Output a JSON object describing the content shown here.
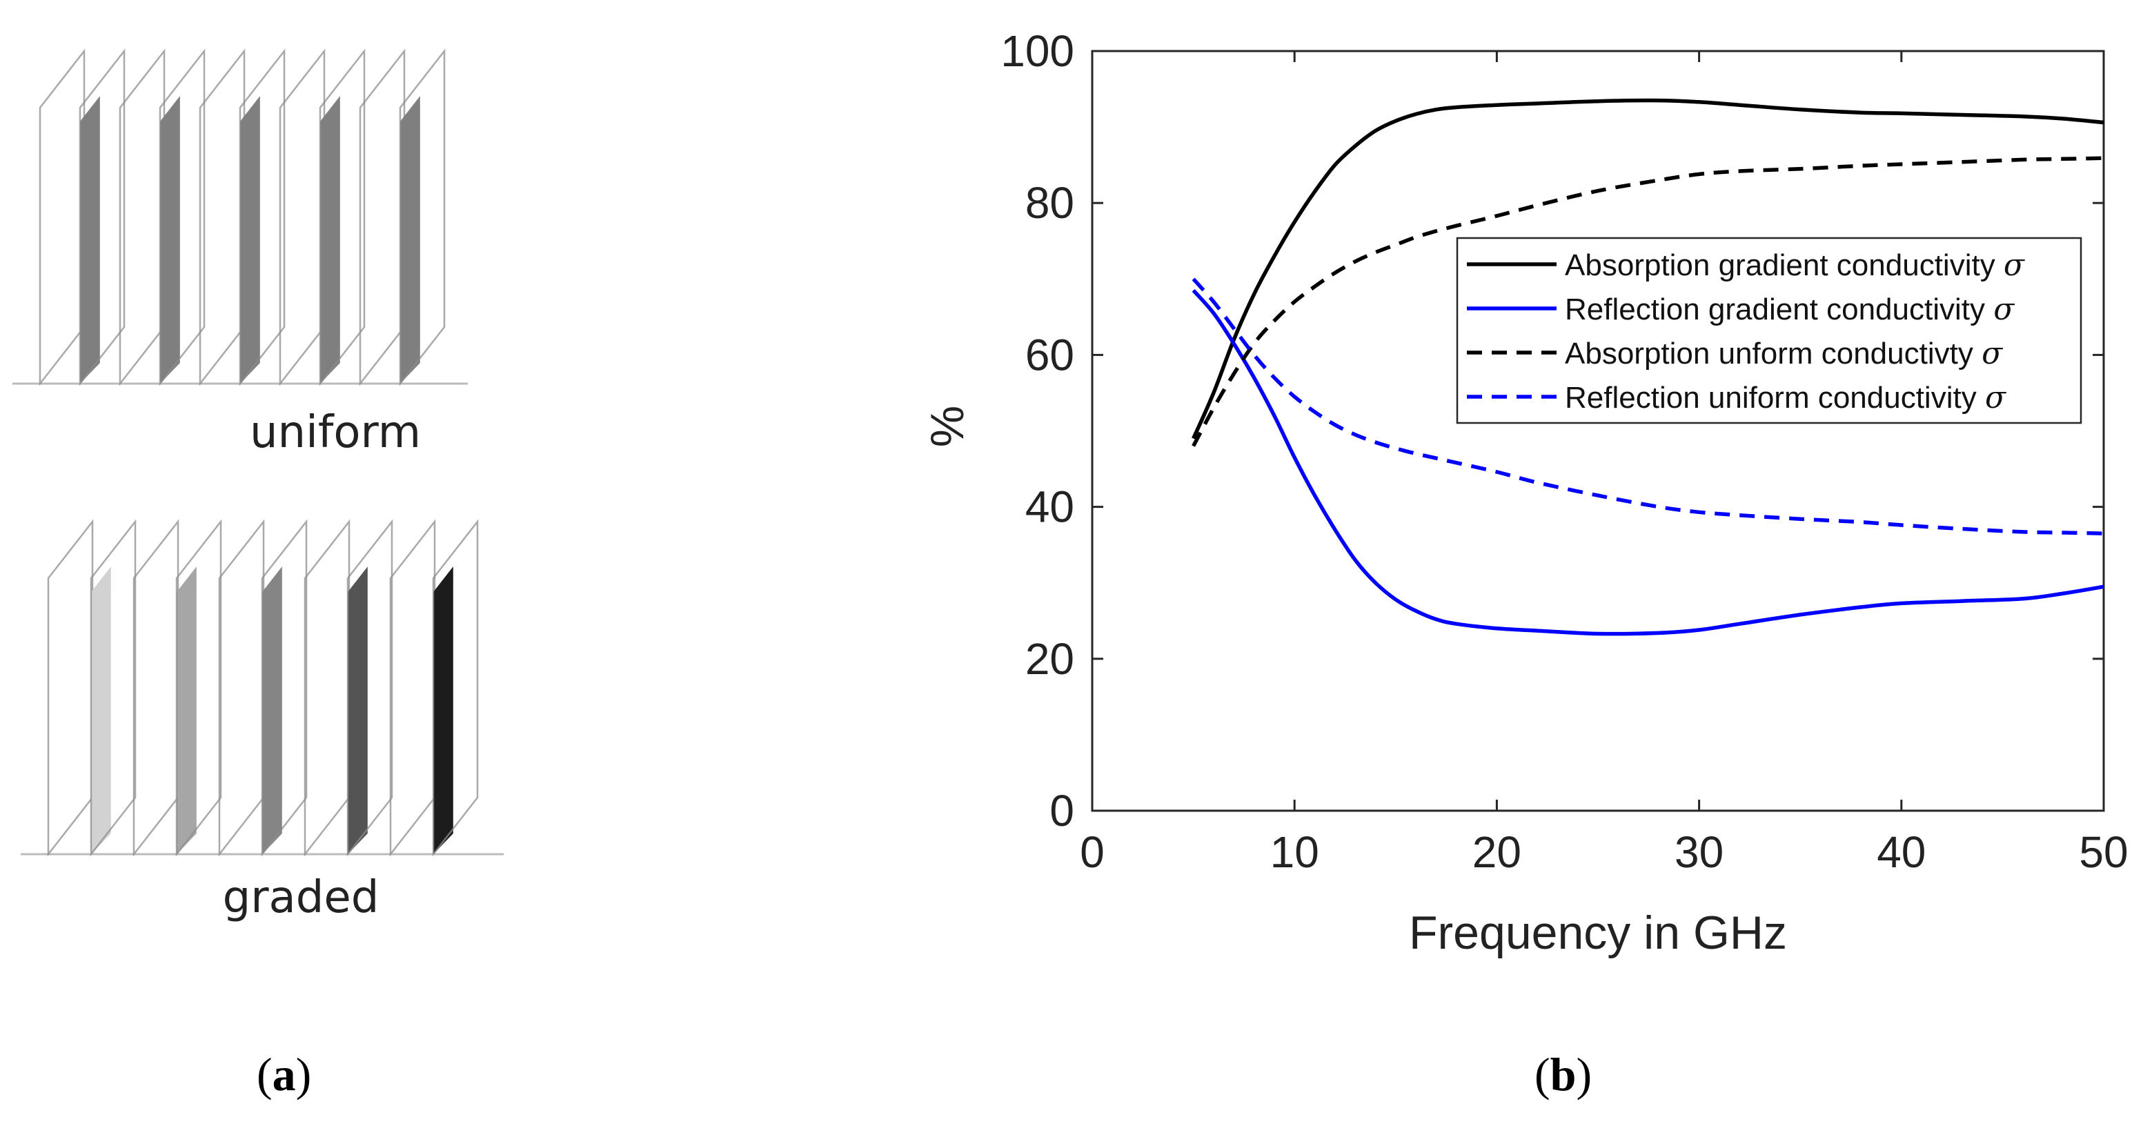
{
  "panel_a": {
    "uniform_label": "uniform",
    "graded_label": "graded",
    "uniform_fills": [
      "#7f7f7f",
      "#7f7f7f",
      "#7f7f7f",
      "#7f7f7f",
      "#7f7f7f"
    ],
    "graded_fills": [
      "#d2d2d2",
      "#a6a6a6",
      "#858585",
      "#545454",
      "#1c1c1c"
    ],
    "frame_color": "#8c8c8c"
  },
  "captions": {
    "a": {
      "open": "(",
      "letter": "a",
      "close": ")"
    },
    "b": {
      "open": "(",
      "letter": "b",
      "close": ")"
    }
  },
  "chart_data": {
    "type": "line",
    "title": "",
    "xlabel": "Frequency in GHz",
    "ylabel": "%",
    "xlim": [
      0,
      50
    ],
    "ylim": [
      0,
      100
    ],
    "xticks": [
      0,
      10,
      20,
      30,
      40,
      50
    ],
    "yticks": [
      0,
      20,
      40,
      60,
      80,
      100
    ],
    "grid": false,
    "legend_position": "upper-right",
    "series": [
      {
        "name": "Absorption gradient conductivity",
        "symbol": "σ",
        "color": "#000000",
        "dash": "solid",
        "x": [
          5,
          6,
          7,
          8,
          9,
          10,
          11,
          12,
          13,
          14,
          15,
          16,
          17,
          18,
          20,
          22,
          25,
          28,
          30,
          32,
          35,
          38,
          40,
          43,
          46,
          48,
          50
        ],
        "y": [
          49,
          55,
          62,
          68,
          73,
          77.5,
          81.5,
          85,
          87.5,
          89.5,
          90.8,
          91.7,
          92.3,
          92.6,
          92.9,
          93.1,
          93.4,
          93.5,
          93.3,
          92.9,
          92.3,
          91.9,
          91.8,
          91.6,
          91.4,
          91.1,
          90.6
        ]
      },
      {
        "name": "Reflection gradient conductivity",
        "symbol": "σ",
        "color": "#0000ff",
        "dash": "solid",
        "x": [
          5,
          6,
          7,
          8,
          9,
          10,
          11,
          12,
          13,
          14,
          15,
          16,
          17,
          18,
          20,
          22,
          25,
          28,
          30,
          32,
          35,
          38,
          40,
          43,
          46,
          48,
          50
        ],
        "y": [
          68.5,
          65.5,
          61.5,
          57,
          52,
          46.5,
          41.5,
          37,
          33,
          30,
          27.8,
          26.3,
          25.2,
          24.6,
          24,
          23.7,
          23.3,
          23.4,
          23.8,
          24.6,
          25.8,
          26.8,
          27.3,
          27.6,
          27.9,
          28.6,
          29.5
        ]
      },
      {
        "name": "Absorption unform conductivty",
        "symbol": "σ",
        "color": "#000000",
        "dash": "dashed",
        "x": [
          5,
          6,
          7,
          8,
          9,
          10,
          11,
          12,
          13,
          14,
          15,
          16,
          17,
          18,
          20,
          22,
          25,
          28,
          30,
          32,
          35,
          38,
          40,
          43,
          46,
          48,
          50
        ],
        "y": [
          48,
          53,
          57.5,
          61.5,
          64.5,
          67,
          69,
          70.8,
          72.3,
          73.5,
          74.5,
          75.5,
          76.3,
          77,
          78.3,
          79.7,
          81.6,
          83,
          83.8,
          84.2,
          84.5,
          84.9,
          85.1,
          85.4,
          85.7,
          85.8,
          85.9
        ]
      },
      {
        "name": "Reflection uniform conductivity",
        "symbol": "σ",
        "color": "#0000ff",
        "dash": "dashed",
        "x": [
          5,
          6,
          7,
          8,
          9,
          10,
          11,
          12,
          13,
          14,
          15,
          16,
          17,
          18,
          20,
          22,
          25,
          28,
          30,
          32,
          35,
          38,
          40,
          43,
          46,
          48,
          50
        ],
        "y": [
          70,
          67,
          63.5,
          60,
          57,
          54.5,
          52.5,
          50.8,
          49.5,
          48.5,
          47.7,
          47,
          46.4,
          45.8,
          44.6,
          43.2,
          41.5,
          40,
          39.3,
          38.9,
          38.4,
          38,
          37.6,
          37.1,
          36.7,
          36.6,
          36.5
        ]
      }
    ]
  }
}
